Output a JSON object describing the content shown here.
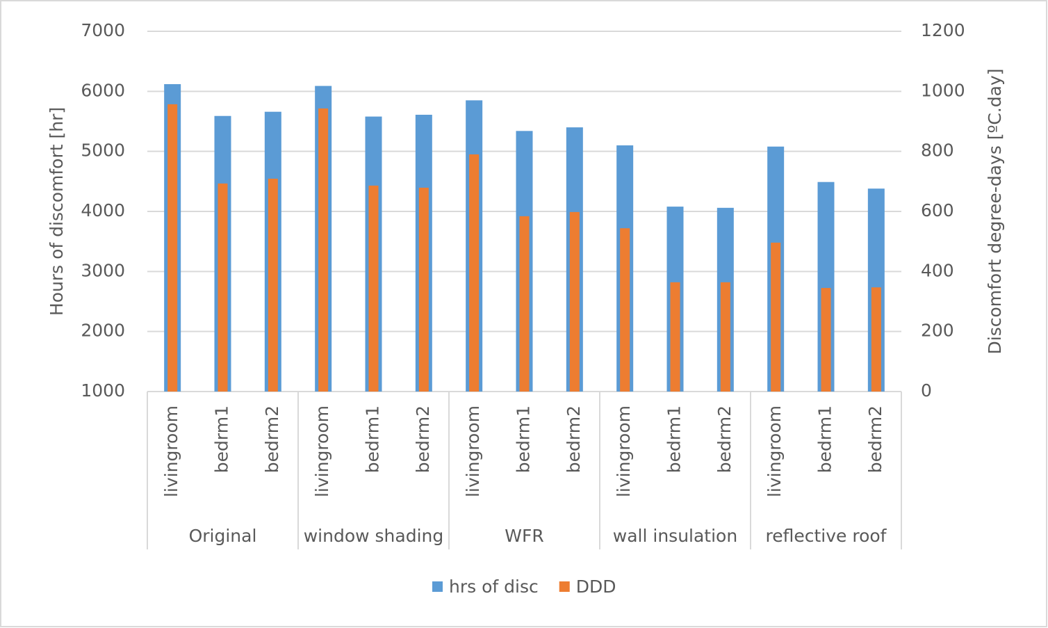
{
  "chart_data": {
    "type": "bar",
    "categories": [
      "livingroom",
      "bedrm1",
      "bedrm2",
      "livingroom",
      "bedrm1",
      "bedrm2",
      "livingroom",
      "bedrm1",
      "bedrm2",
      "livingroom",
      "bedrm1",
      "bedrm2",
      "livingroom",
      "bedrm1",
      "bedrm2"
    ],
    "groups": [
      "Original",
      "window shading",
      "WFR",
      "wall insulation",
      "reflective roof"
    ],
    "series": [
      {
        "name": "hrs of disc",
        "color": "#5b9bd5",
        "axis": "y",
        "values": [
          6120,
          5590,
          5660,
          6090,
          5580,
          5610,
          5850,
          5340,
          5400,
          5100,
          4080,
          4060,
          5080,
          4490,
          4380
        ]
      },
      {
        "name": "DDD",
        "color": "#ed7d31",
        "axis": "y2",
        "values": [
          957,
          693,
          709,
          943,
          686,
          679,
          790,
          584,
          598,
          544,
          364,
          364,
          496,
          345,
          347
        ]
      }
    ],
    "ylabel": "Hours of discomfort [hr]",
    "y2label": "Discomfort degree-days [ºC.day]",
    "ylim": [
      1000,
      7000
    ],
    "yticks": [
      1000,
      2000,
      3000,
      4000,
      5000,
      6000,
      7000
    ],
    "y2lim": [
      0,
      1200
    ],
    "y2ticks": [
      0,
      200,
      400,
      600,
      800,
      1000,
      1200
    ],
    "grid": true,
    "legend": "bottom"
  }
}
